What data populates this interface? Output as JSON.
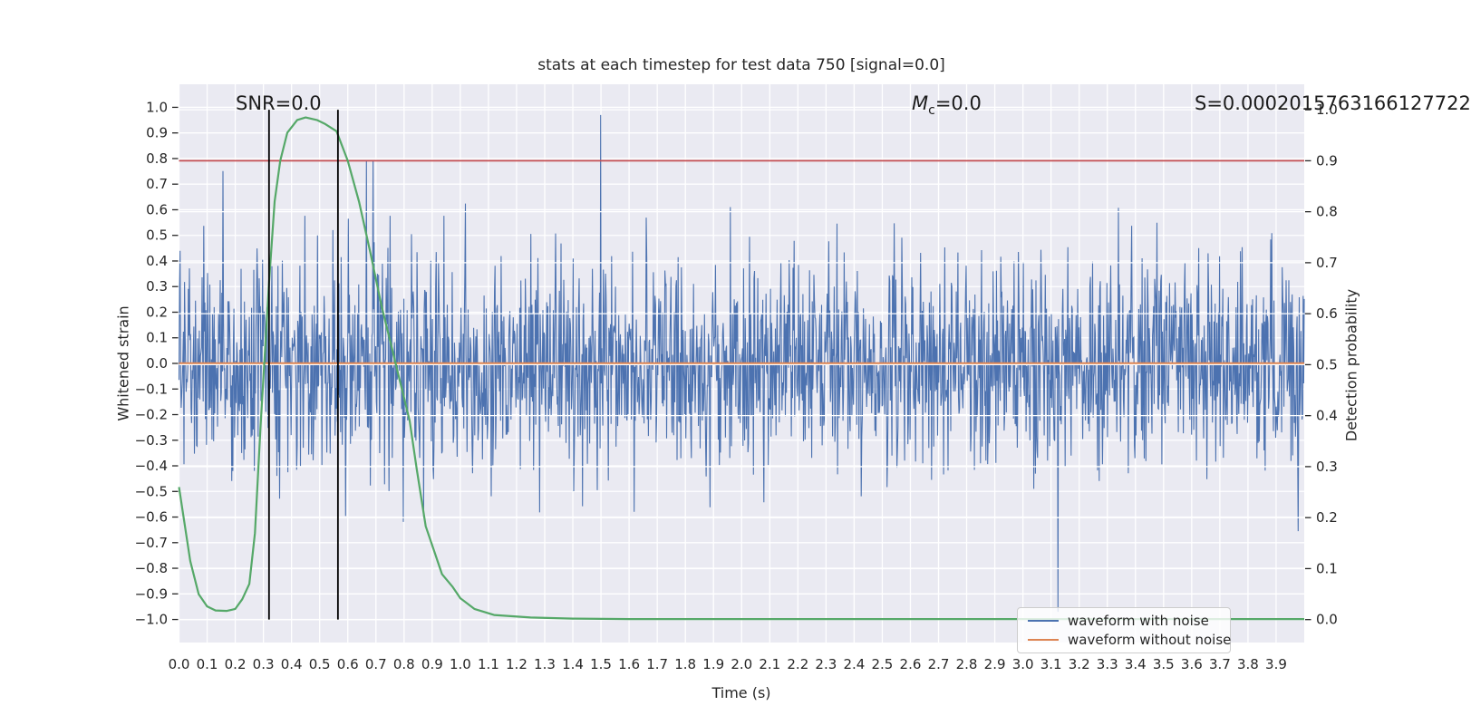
{
  "title": "stats at each timestep for test data 750 [signal=0.0]",
  "annotations": {
    "snr": "SNR=0.0",
    "mc": {
      "m": "M",
      "subscript": "c",
      "rest": "=0.0"
    },
    "s": "S=0.0002015763166127722"
  },
  "axes": {
    "xlabel": "Time (s)",
    "ylabel_left": "Whitened strain",
    "ylabel_right": "Detection probability"
  },
  "legend": {
    "items": [
      {
        "label": "waveform with noise",
        "color": "#4c72b0"
      },
      {
        "label": "waveform without noise",
        "color": "#dd8452"
      }
    ]
  },
  "colors": {
    "plot_background": "#eaeaf2",
    "grid": "#ffffff",
    "waveform_with_noise": "#4c72b0",
    "waveform_without_noise": "#dd8452",
    "detection_probability": "#55a868",
    "threshold_line": "#c44e52",
    "event_markers": "#000000",
    "text": "#262626"
  },
  "chart_data": {
    "type": "line",
    "title": "stats at each timestep for test data 750 [signal=0.0]",
    "xlabel": "Time (s)",
    "ylabel_left": "Whitened strain",
    "ylabel_right": "Detection probability",
    "xlim": [
      0.0,
      4.0
    ],
    "ylim_left": [
      -1.09,
      1.09
    ],
    "ylim_right": [
      -0.045,
      1.05
    ],
    "grid": true,
    "legend_position": "lower right",
    "x_ticks": [
      "0.0",
      "0.1",
      "0.2",
      "0.3",
      "0.4",
      "0.5",
      "0.6",
      "0.7",
      "0.8",
      "0.9",
      "1.0",
      "1.1",
      "1.2",
      "1.3",
      "1.4",
      "1.5",
      "1.6",
      "1.7",
      "1.8",
      "1.9",
      "2.0",
      "2.1",
      "2.2",
      "2.3",
      "2.4",
      "2.5",
      "2.6",
      "2.7",
      "2.8",
      "2.9",
      "3.0",
      "3.1",
      "3.2",
      "3.3",
      "3.4",
      "3.5",
      "3.6",
      "3.7",
      "3.8",
      "3.9"
    ],
    "y_ticks_left": [
      "1.0",
      "0.9",
      "0.8",
      "0.7",
      "0.6",
      "0.5",
      "0.4",
      "0.3",
      "0.2",
      "0.1",
      "0.0",
      "−0.1",
      "−0.2",
      "−0.3",
      "−0.4",
      "−0.5",
      "−0.6",
      "−0.7",
      "−0.8",
      "−0.9",
      "−1.0"
    ],
    "y_ticks_right": [
      "1.0",
      "0.9",
      "0.8",
      "0.7",
      "0.6",
      "0.5",
      "0.4",
      "0.3",
      "0.2",
      "0.1",
      "0.0"
    ],
    "series": [
      {
        "name": "waveform with noise",
        "axis": "left",
        "color": "#4c72b0",
        "type": "noise",
        "n_points": 2048,
        "x_range": [
          0.0,
          4.0
        ],
        "sigma": 0.2,
        "spike_fraction": 0.025,
        "spike_sigma": 0.42,
        "clip": 0.97,
        "seed": 7
      },
      {
        "name": "waveform without noise",
        "axis": "left",
        "color": "#dd8452",
        "type": "constant",
        "value": 0.0
      },
      {
        "name": "detection probability",
        "axis": "right",
        "color": "#55a868",
        "type": "line",
        "points": [
          [
            0.0,
            0.26
          ],
          [
            0.04,
            0.115
          ],
          [
            0.07,
            0.05
          ],
          [
            0.1,
            0.026
          ],
          [
            0.13,
            0.018
          ],
          [
            0.17,
            0.017
          ],
          [
            0.2,
            0.021
          ],
          [
            0.225,
            0.04
          ],
          [
            0.25,
            0.07
          ],
          [
            0.27,
            0.17
          ],
          [
            0.29,
            0.38
          ],
          [
            0.32,
            0.66
          ],
          [
            0.34,
            0.82
          ],
          [
            0.36,
            0.9
          ],
          [
            0.385,
            0.955
          ],
          [
            0.42,
            0.98
          ],
          [
            0.45,
            0.985
          ],
          [
            0.49,
            0.98
          ],
          [
            0.52,
            0.972
          ],
          [
            0.56,
            0.958
          ],
          [
            0.6,
            0.9
          ],
          [
            0.64,
            0.82
          ],
          [
            0.68,
            0.72
          ],
          [
            0.72,
            0.615
          ],
          [
            0.754,
            0.539
          ],
          [
            0.78,
            0.48
          ],
          [
            0.82,
            0.39
          ],
          [
            0.845,
            0.295
          ],
          [
            0.877,
            0.183
          ],
          [
            0.91,
            0.13
          ],
          [
            0.935,
            0.089
          ],
          [
            0.973,
            0.064
          ],
          [
            1.0,
            0.042
          ],
          [
            1.05,
            0.021
          ],
          [
            1.12,
            0.009
          ],
          [
            1.25,
            0.004
          ],
          [
            1.4,
            0.002
          ],
          [
            1.6,
            0.001
          ],
          [
            2.0,
            0.001
          ],
          [
            2.5,
            0.001
          ],
          [
            3.0,
            0.001
          ],
          [
            3.5,
            0.001
          ],
          [
            4.0,
            0.001
          ]
        ]
      }
    ],
    "reference_lines": [
      {
        "type": "hline",
        "axis": "right",
        "value": 0.9,
        "color": "#c44e52"
      },
      {
        "type": "vline",
        "x": 0.32,
        "span": [
          0.0,
          1.0
        ],
        "color": "#000000"
      },
      {
        "type": "vline",
        "x": 0.565,
        "span": [
          0.0,
          1.0
        ],
        "color": "#000000"
      }
    ]
  }
}
